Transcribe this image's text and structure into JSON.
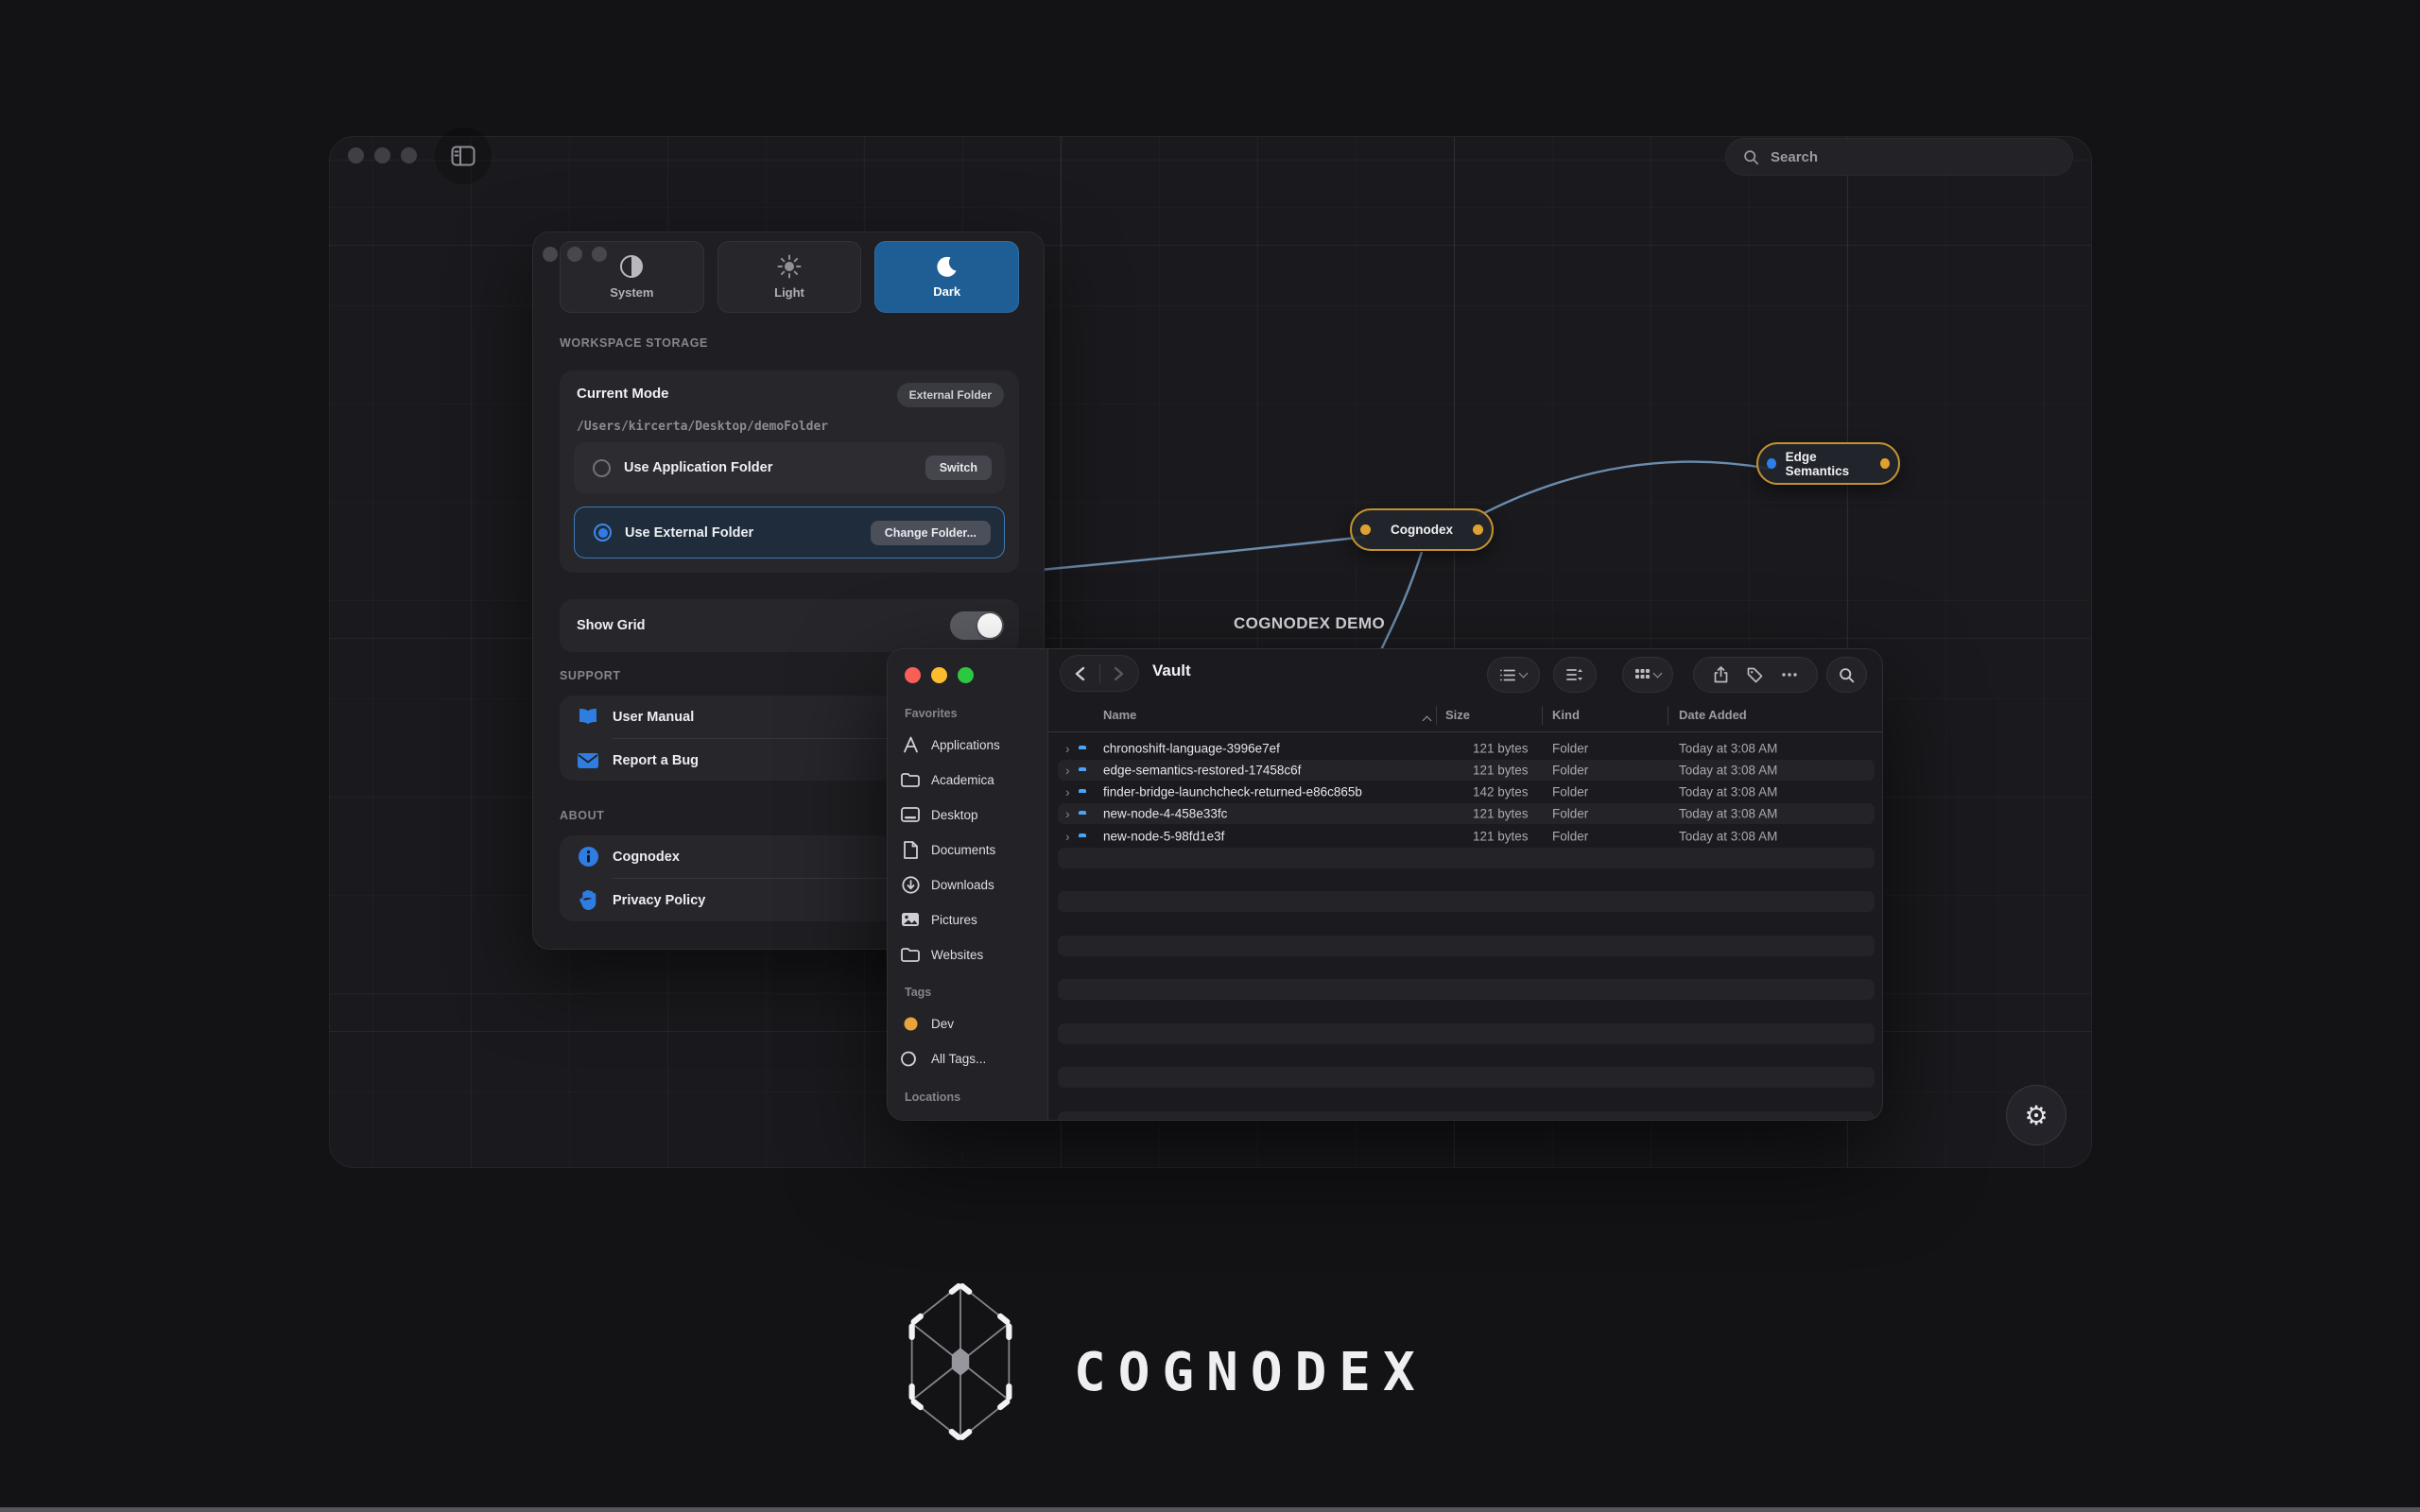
{
  "window": {
    "search_placeholder": "Search",
    "demo_label": "COGNODEX DEMO"
  },
  "graph": {
    "nodes": [
      {
        "label": "Cognodex",
        "left_port": "orange",
        "right_port": "orange"
      },
      {
        "label": "Edge Semantics",
        "left_port": "blue",
        "right_port": "orange"
      }
    ]
  },
  "settings": {
    "theme_options": [
      {
        "label": "System",
        "icon": "half-circle-icon",
        "selected": false
      },
      {
        "label": "Light",
        "icon": "sun-icon",
        "selected": false
      },
      {
        "label": "Dark",
        "icon": "moon-icon",
        "selected": true
      }
    ],
    "workspace_header": "WORKSPACE STORAGE",
    "current_mode_label": "Current Mode",
    "current_mode_badge": "External Folder",
    "path": "/Users/kircerta/Desktop/demoFolder",
    "app_folder_label": "Use Application Folder",
    "switch_label": "Switch",
    "external_folder_label": "Use External Folder",
    "change_folder_label": "Change Folder...",
    "show_grid_label": "Show Grid",
    "show_grid_on": true,
    "support_header": "SUPPORT",
    "user_manual_label": "User Manual",
    "report_bug_label": "Report a Bug",
    "about_header": "ABOUT",
    "about_app_label": "Cognodex",
    "privacy_label": "Privacy Policy"
  },
  "finder": {
    "title": "Vault",
    "sidebar": {
      "favorites_header": "Favorites",
      "favorites": [
        {
          "icon": "applications",
          "label": "Applications"
        },
        {
          "icon": "folder",
          "label": "Academica"
        },
        {
          "icon": "desktop",
          "label": "Desktop"
        },
        {
          "icon": "document",
          "label": "Documents"
        },
        {
          "icon": "download",
          "label": "Downloads"
        },
        {
          "icon": "picture",
          "label": "Pictures"
        },
        {
          "icon": "folder",
          "label": "Websites"
        }
      ],
      "tags_header": "Tags",
      "tags": [
        {
          "icon": "dot",
          "label": "Dev",
          "color": "#e8a33d"
        },
        {
          "icon": "circles",
          "label": "All Tags..."
        }
      ],
      "locations_header": "Locations"
    },
    "columns": [
      "Name",
      "Size",
      "Kind",
      "Date Added"
    ],
    "files": [
      {
        "name": "chronoshift-language-3996e7ef",
        "size": "121 bytes",
        "kind": "Folder",
        "date": "Today at 3:08 AM"
      },
      {
        "name": "edge-semantics-restored-17458c6f",
        "size": "121 bytes",
        "kind": "Folder",
        "date": "Today at 3:08 AM"
      },
      {
        "name": "finder-bridge-launchcheck-returned-e86c865b",
        "size": "142 bytes",
        "kind": "Folder",
        "date": "Today at 3:08 AM"
      },
      {
        "name": "new-node-4-458e33fc",
        "size": "121 bytes",
        "kind": "Folder",
        "date": "Today at 3:08 AM"
      },
      {
        "name": "new-node-5-98fd1e3f",
        "size": "121 bytes",
        "kind": "Folder",
        "date": "Today at 3:08 AM"
      }
    ],
    "empty_row_count": 13
  },
  "logo": {
    "text": "COGNODEX"
  },
  "colors": {
    "accent_blue": "#2f7de1",
    "dark_selected": "#1f5e94",
    "node_border_orange": "#c3912f",
    "port_orange": "#dfa22f",
    "port_blue": "#2e7fe8",
    "edge_blue": "#80a9d2",
    "folder_blue": "#4aa3f5",
    "tag_dev": "#e8a33d",
    "traffic_red": "#f95f57",
    "traffic_yellow": "#febb2e",
    "traffic_green": "#2bc840"
  }
}
